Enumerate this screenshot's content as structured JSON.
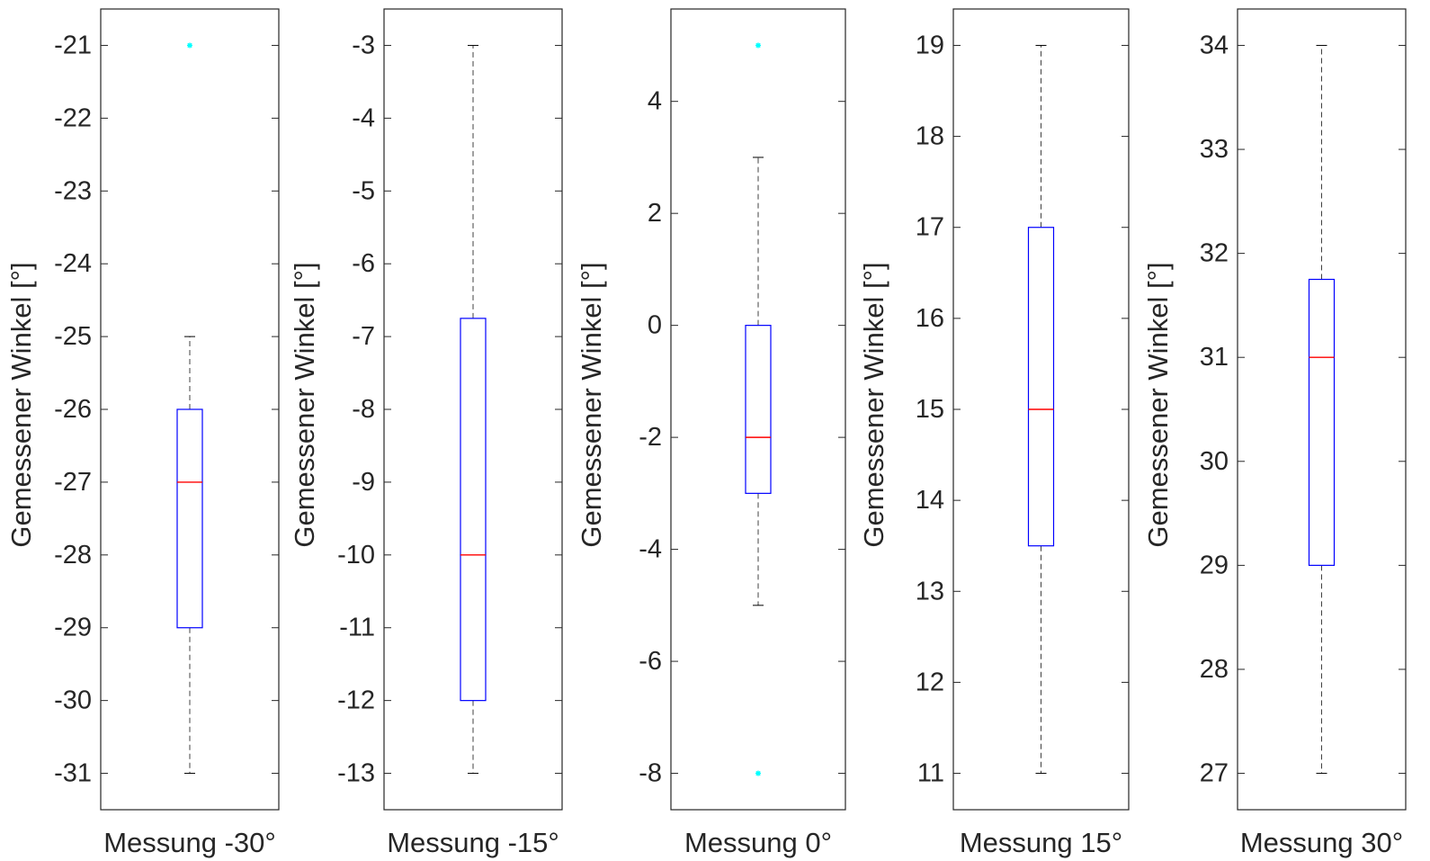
{
  "chart_data": [
    {
      "type": "boxplot",
      "category": "Messung -30°",
      "ylabel": "Gemessener Winkel [°]",
      "ylim": [
        -31.5,
        -20.5
      ],
      "yticks": [
        -31,
        -30,
        -29,
        -28,
        -27,
        -26,
        -25,
        -24,
        -23,
        -22,
        -21
      ],
      "whisker_low": -31,
      "q1": -29,
      "median": -27,
      "q3": -26,
      "whisker_high": -25,
      "outliers": [
        -21
      ]
    },
    {
      "type": "boxplot",
      "category": "Messung -15°",
      "ylabel": "Gemessener Winkel [°]",
      "ylim": [
        -13.5,
        -2.5
      ],
      "yticks": [
        -13,
        -12,
        -11,
        -10,
        -9,
        -8,
        -7,
        -6,
        -5,
        -4,
        -3
      ],
      "whisker_low": -13,
      "q1": -12,
      "median": -10,
      "q3": -6.75,
      "whisker_high": -3,
      "outliers": []
    },
    {
      "type": "boxplot",
      "category": "Messung 0°",
      "ylabel": "Gemessener Winkel [°]",
      "ylim": [
        -8.65,
        5.65
      ],
      "yticks": [
        -8,
        -6,
        -4,
        -2,
        0,
        2,
        4
      ],
      "whisker_low": -5,
      "q1": -3,
      "median": -2,
      "q3": 0,
      "whisker_high": 3,
      "outliers": [
        -8,
        5
      ]
    },
    {
      "type": "boxplot",
      "category": "Messung 15°",
      "ylabel": "Gemessener Winkel [°]",
      "ylim": [
        10.6,
        19.4
      ],
      "yticks": [
        11,
        12,
        13,
        14,
        15,
        16,
        17,
        18,
        19
      ],
      "whisker_low": 11,
      "q1": 13.5,
      "median": 15,
      "q3": 17,
      "whisker_high": 19,
      "outliers": []
    },
    {
      "type": "boxplot",
      "category": "Messung 30°",
      "ylabel": "Gemessener Winkel [°]",
      "ylim": [
        26.65,
        34.35
      ],
      "yticks": [
        27,
        28,
        29,
        30,
        31,
        32,
        33,
        34
      ],
      "whisker_low": 27,
      "q1": 29,
      "median": 31,
      "q3": 31.75,
      "whisker_high": 34,
      "outliers": []
    }
  ],
  "colors": {
    "box": "#0000ff",
    "median": "#ff0000",
    "whisker": "#000000",
    "outlier": "#00ffff",
    "axes": "#262626"
  }
}
